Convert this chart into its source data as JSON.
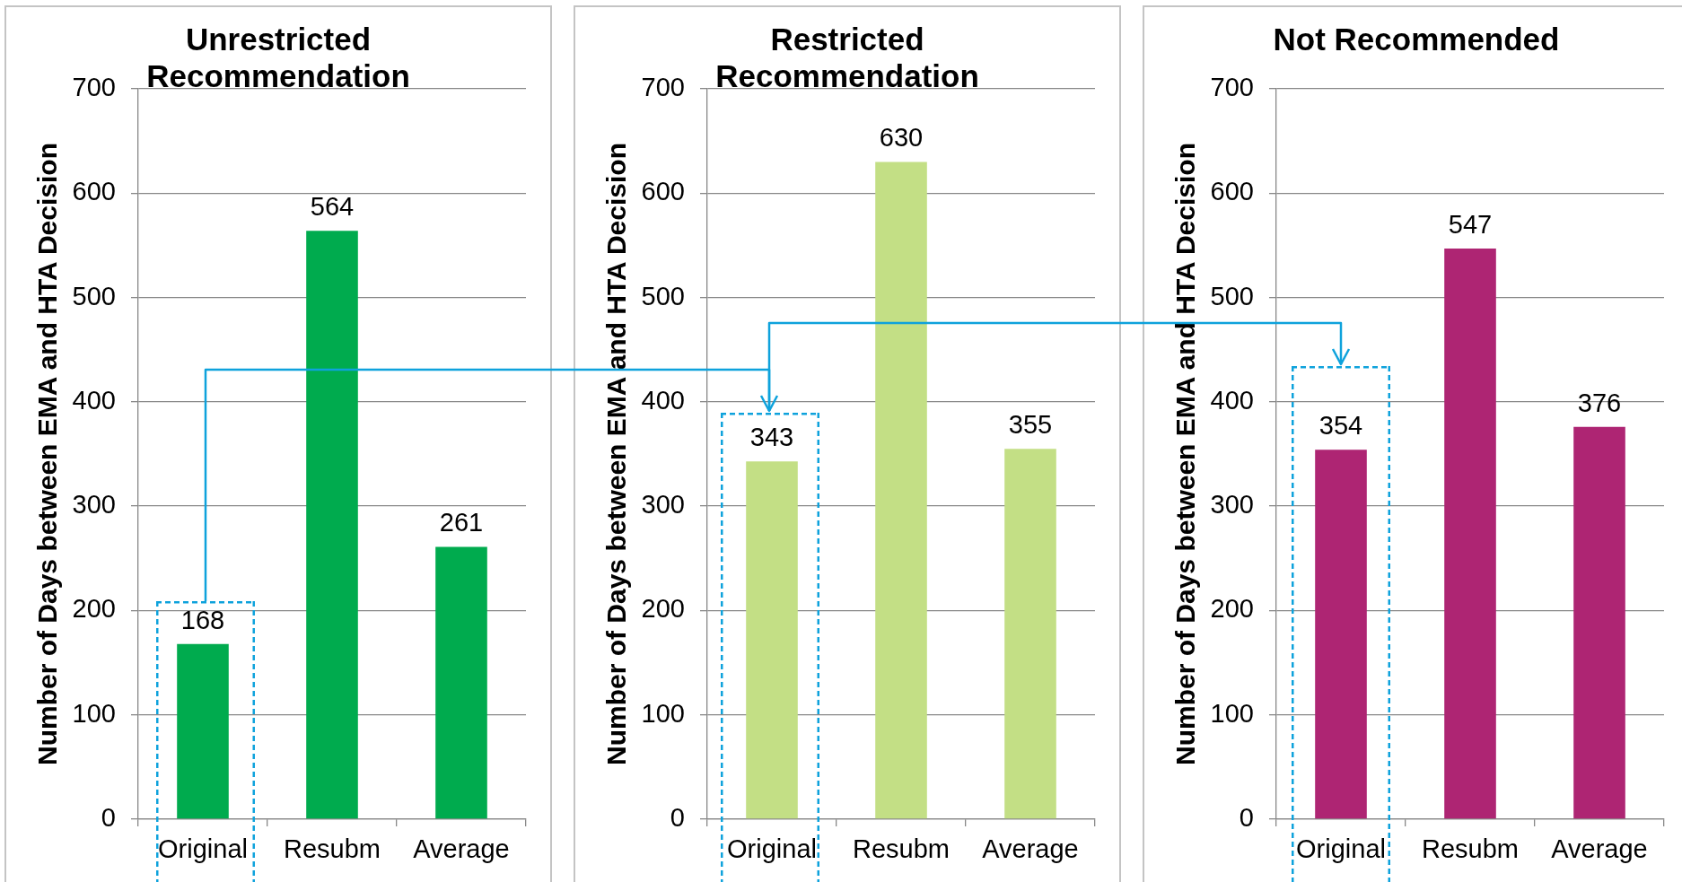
{
  "chart_data": [
    {
      "type": "bar",
      "title": "Unrestricted Recommendation",
      "ylabel": "Number of Days between EMA and HTA Decision",
      "categories": [
        "Original",
        "Resubm",
        "Average"
      ],
      "values": [
        168,
        564,
        261
      ],
      "color": "#00ab4e",
      "ylim": [
        0,
        700
      ],
      "yticks": [
        0,
        100,
        200,
        300,
        400,
        500,
        600,
        700
      ],
      "grid": "y",
      "data_labels": true
    },
    {
      "type": "bar",
      "title": "Restricted Recommendation",
      "ylabel": "Number of Days between EMA and HTA Decision",
      "categories": [
        "Original",
        "Resubm",
        "Average"
      ],
      "values": [
        343,
        630,
        355
      ],
      "color": "#c3df85",
      "ylim": [
        0,
        700
      ],
      "yticks": [
        0,
        100,
        200,
        300,
        400,
        500,
        600,
        700
      ],
      "grid": "y",
      "data_labels": true
    },
    {
      "type": "bar",
      "title": "Not Recommended",
      "ylabel": "Number of Days between EMA and HTA Decision",
      "categories": [
        "Original",
        "Resubm",
        "Average"
      ],
      "values": [
        354,
        547,
        376
      ],
      "color": "#ae2573",
      "ylim": [
        0,
        700
      ],
      "yticks": [
        0,
        100,
        200,
        300,
        400,
        500,
        600,
        700
      ],
      "grid": "y",
      "data_labels": true
    }
  ]
}
